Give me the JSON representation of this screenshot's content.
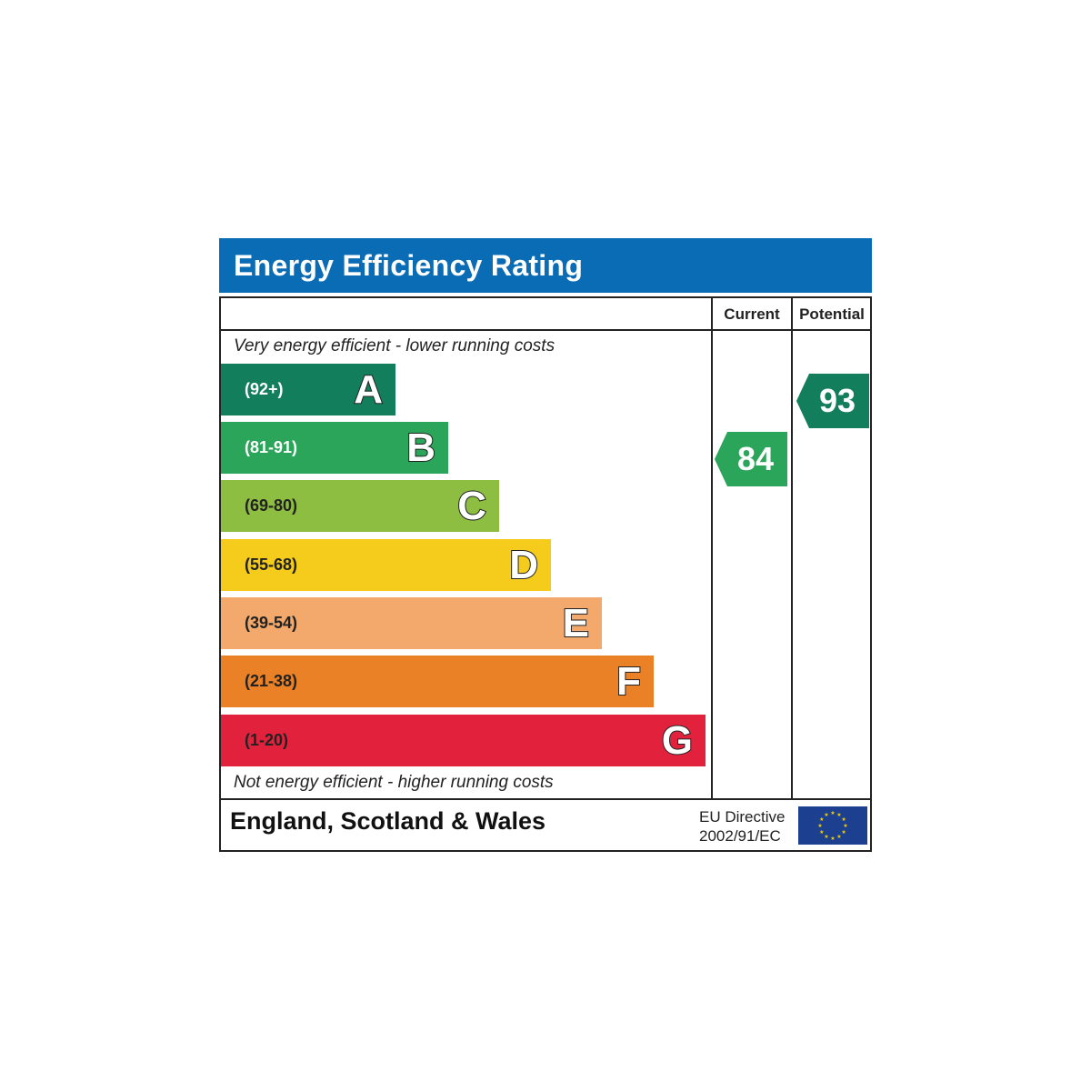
{
  "title": "Energy Efficiency Rating",
  "columns": {
    "current": "Current",
    "potential": "Potential"
  },
  "top_note": "Very energy efficient - lower running costs",
  "bottom_note": "Not energy efficient - higher running costs",
  "footer": {
    "region": "England, Scotland & Wales",
    "directive_line1": "EU Directive",
    "directive_line2": "2002/91/EC",
    "flag_icon": "eu-flag-icon"
  },
  "chart_data": {
    "type": "bar",
    "title": "Energy Efficiency Rating",
    "categories": [
      "A",
      "B",
      "C",
      "D",
      "E",
      "F",
      "G"
    ],
    "bands": [
      {
        "letter": "A",
        "range": "(92+)",
        "color": "#137e5b",
        "text_color": "#ffffff"
      },
      {
        "letter": "B",
        "range": "(81-91)",
        "color": "#2ba55a",
        "text_color": "#ffffff"
      },
      {
        "letter": "C",
        "range": "(69-80)",
        "color": "#8dbd41",
        "text_color": "#222222"
      },
      {
        "letter": "D",
        "range": "(55-68)",
        "color": "#f5cc1b",
        "text_color": "#222222"
      },
      {
        "letter": "E",
        "range": "(39-54)",
        "color": "#f2a96b",
        "text_color": "#222222"
      },
      {
        "letter": "F",
        "range": "(21-38)",
        "color": "#eb8126",
        "text_color": "#222222"
      },
      {
        "letter": "G",
        "range": "(1-20)",
        "color": "#e2223d",
        "text_color": "#222222"
      }
    ],
    "current": {
      "value": 84,
      "band": "B",
      "color": "#2ba55a"
    },
    "potential": {
      "value": 93,
      "band": "A",
      "color": "#137e5b"
    }
  }
}
